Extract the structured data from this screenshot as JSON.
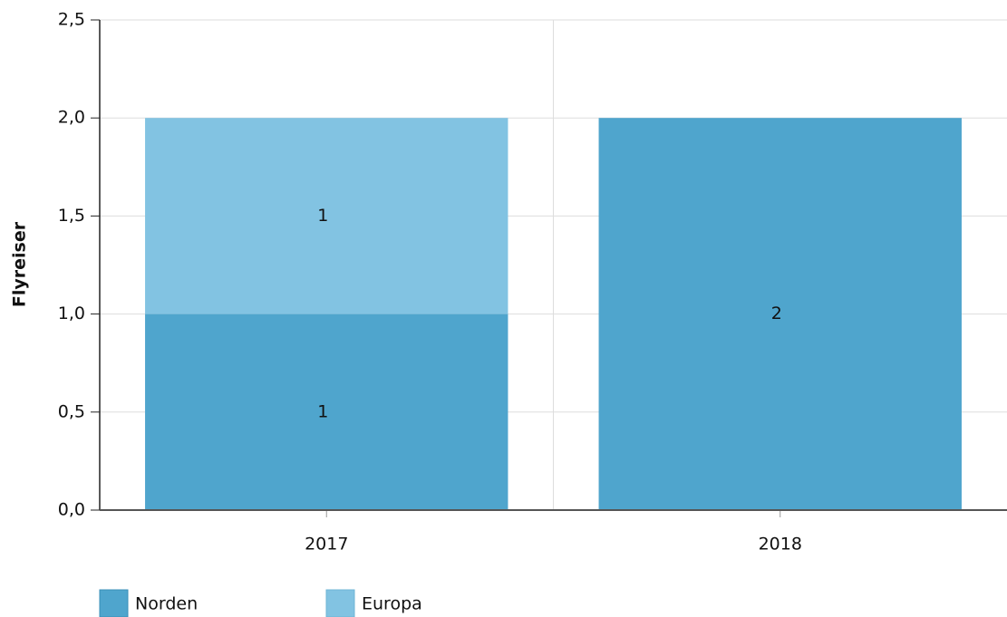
{
  "chart_data": {
    "type": "stacked_bar",
    "y_label": "Flyreiser",
    "categories": [
      "2017",
      "2018"
    ],
    "series": [
      {
        "name": "Norden",
        "color": "#4fa5cd",
        "values": [
          1,
          2
        ]
      },
      {
        "name": "Europa",
        "color": "#82c3e2",
        "values": [
          1,
          null
        ]
      }
    ],
    "ylim": [
      0,
      2.5
    ],
    "yticks": [
      {
        "value": 0,
        "label": "0,0"
      },
      {
        "value": 0.5,
        "label": "0,5"
      },
      {
        "value": 1,
        "label": "1,0"
      },
      {
        "value": 1.5,
        "label": "1,5"
      },
      {
        "value": 2,
        "label": "2,0"
      },
      {
        "value": 2.5,
        "label": "2,5"
      }
    ],
    "grid": true,
    "legend": "bottom-left"
  }
}
